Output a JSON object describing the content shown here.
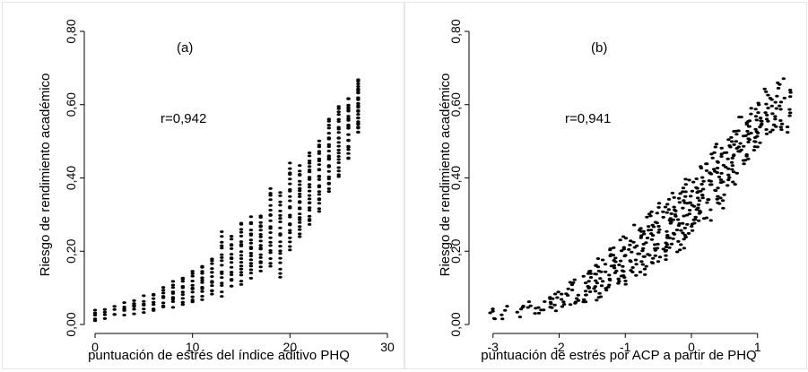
{
  "chart_data": [
    {
      "type": "scatter",
      "panel_label": "(a)",
      "annotation": "r=0,942",
      "xlabel": "puntuación de estrés del índice aditivo PHQ",
      "ylabel": "Riesgo de rendimiento académico",
      "xlim": [
        0,
        30
      ],
      "ylim": [
        0,
        0.8
      ],
      "x_ticks": [
        0,
        10,
        20,
        30
      ],
      "x_tick_labels": [
        "0",
        "10",
        "20",
        "30"
      ],
      "y_ticks": [
        0,
        0.2,
        0.4,
        0.6,
        0.8
      ],
      "y_tick_labels": [
        "0,00",
        "0,20",
        "0,40",
        "0,60",
        "0,80"
      ],
      "grid": false,
      "series": [
        {
          "points_by_x": [
            {
              "x": 0,
              "ymin": 0.015,
              "ymax": 0.035,
              "n": 5
            },
            {
              "x": 1,
              "ymin": 0.02,
              "ymax": 0.04,
              "n": 4
            },
            {
              "x": 2,
              "ymin": 0.025,
              "ymax": 0.045,
              "n": 4
            },
            {
              "x": 3,
              "ymin": 0.03,
              "ymax": 0.055,
              "n": 5
            },
            {
              "x": 4,
              "ymin": 0.03,
              "ymax": 0.065,
              "n": 6
            },
            {
              "x": 5,
              "ymin": 0.035,
              "ymax": 0.075,
              "n": 6
            },
            {
              "x": 6,
              "ymin": 0.04,
              "ymax": 0.085,
              "n": 7
            },
            {
              "x": 7,
              "ymin": 0.045,
              "ymax": 0.1,
              "n": 8
            },
            {
              "x": 8,
              "ymin": 0.05,
              "ymax": 0.115,
              "n": 9
            },
            {
              "x": 9,
              "ymin": 0.055,
              "ymax": 0.13,
              "n": 10
            },
            {
              "x": 10,
              "ymin": 0.06,
              "ymax": 0.145,
              "n": 11
            },
            {
              "x": 11,
              "ymin": 0.07,
              "ymax": 0.16,
              "n": 12
            },
            {
              "x": 12,
              "ymin": 0.08,
              "ymax": 0.18,
              "n": 13
            },
            {
              "x": 13,
              "ymin": 0.08,
              "ymax": 0.25,
              "n": 16
            },
            {
              "x": 14,
              "ymin": 0.1,
              "ymax": 0.24,
              "n": 16
            },
            {
              "x": 15,
              "ymin": 0.11,
              "ymax": 0.28,
              "n": 18
            },
            {
              "x": 16,
              "ymin": 0.13,
              "ymax": 0.29,
              "n": 18
            },
            {
              "x": 17,
              "ymin": 0.15,
              "ymax": 0.3,
              "n": 18
            },
            {
              "x": 18,
              "ymin": 0.16,
              "ymax": 0.37,
              "n": 20
            },
            {
              "x": 19,
              "ymin": 0.13,
              "ymax": 0.36,
              "n": 20
            },
            {
              "x": 20,
              "ymin": 0.2,
              "ymax": 0.44,
              "n": 22
            },
            {
              "x": 21,
              "ymin": 0.24,
              "ymax": 0.43,
              "n": 22
            },
            {
              "x": 22,
              "ymin": 0.27,
              "ymax": 0.47,
              "n": 22
            },
            {
              "x": 23,
              "ymin": 0.31,
              "ymax": 0.5,
              "n": 22
            },
            {
              "x": 24,
              "ymin": 0.36,
              "ymax": 0.56,
              "n": 22
            },
            {
              "x": 25,
              "ymin": 0.4,
              "ymax": 0.6,
              "n": 22
            },
            {
              "x": 26,
              "ymin": 0.45,
              "ymax": 0.62,
              "n": 22
            },
            {
              "x": 27,
              "ymin": 0.52,
              "ymax": 0.67,
              "n": 26
            }
          ]
        }
      ]
    },
    {
      "type": "scatter",
      "panel_label": "(b)",
      "annotation": "r=0,941",
      "xlabel": "puntuación de estrés por ACP a partir de PHQ",
      "ylabel": "Riesgo de rendimiento académico",
      "xlim": [
        -3.2,
        1.6
      ],
      "ylim": [
        0,
        0.8
      ],
      "x_ticks": [
        -3,
        -2,
        -1,
        0,
        1
      ],
      "x_tick_labels": [
        "-3",
        "-2",
        "-1",
        "0",
        "1"
      ],
      "y_ticks": [
        0,
        0.2,
        0.4,
        0.6,
        0.8
      ],
      "y_tick_labels": [
        "0,00",
        "0,20",
        "0,40",
        "0,60",
        "0,80"
      ],
      "grid": false,
      "series": [
        {
          "x_range": [
            -3.0,
            1.4
          ],
          "points_by_x": [
            {
              "x": -3.0,
              "ymin": 0.015,
              "ymax": 0.04,
              "n": 5
            },
            {
              "x": -2.8,
              "ymin": 0.02,
              "ymax": 0.045,
              "n": 4
            },
            {
              "x": -2.6,
              "ymin": 0.025,
              "ymax": 0.05,
              "n": 5
            },
            {
              "x": -2.4,
              "ymin": 0.03,
              "ymax": 0.06,
              "n": 7
            },
            {
              "x": -2.2,
              "ymin": 0.035,
              "ymax": 0.075,
              "n": 9
            },
            {
              "x": -2.0,
              "ymin": 0.04,
              "ymax": 0.09,
              "n": 11
            },
            {
              "x": -1.8,
              "ymin": 0.05,
              "ymax": 0.12,
              "n": 14
            },
            {
              "x": -1.6,
              "ymin": 0.06,
              "ymax": 0.15,
              "n": 18
            },
            {
              "x": -1.4,
              "ymin": 0.07,
              "ymax": 0.18,
              "n": 22
            },
            {
              "x": -1.2,
              "ymin": 0.09,
              "ymax": 0.21,
              "n": 24
            },
            {
              "x": -1.0,
              "ymin": 0.11,
              "ymax": 0.24,
              "n": 26
            },
            {
              "x": -0.8,
              "ymin": 0.13,
              "ymax": 0.27,
              "n": 28
            },
            {
              "x": -0.6,
              "ymin": 0.16,
              "ymax": 0.31,
              "n": 30
            },
            {
              "x": -0.4,
              "ymin": 0.18,
              "ymax": 0.34,
              "n": 32
            },
            {
              "x": -0.2,
              "ymin": 0.2,
              "ymax": 0.37,
              "n": 34
            },
            {
              "x": 0.0,
              "ymin": 0.24,
              "ymax": 0.4,
              "n": 34
            },
            {
              "x": 0.2,
              "ymin": 0.28,
              "ymax": 0.44,
              "n": 34
            },
            {
              "x": 0.4,
              "ymin": 0.32,
              "ymax": 0.49,
              "n": 32
            },
            {
              "x": 0.6,
              "ymin": 0.38,
              "ymax": 0.53,
              "n": 30
            },
            {
              "x": 0.8,
              "ymin": 0.44,
              "ymax": 0.57,
              "n": 28
            },
            {
              "x": 1.0,
              "ymin": 0.48,
              "ymax": 0.6,
              "n": 26
            },
            {
              "x": 1.2,
              "ymin": 0.52,
              "ymax": 0.64,
              "n": 24
            },
            {
              "x": 1.4,
              "ymin": 0.52,
              "ymax": 0.67,
              "n": 20
            }
          ]
        }
      ]
    }
  ]
}
